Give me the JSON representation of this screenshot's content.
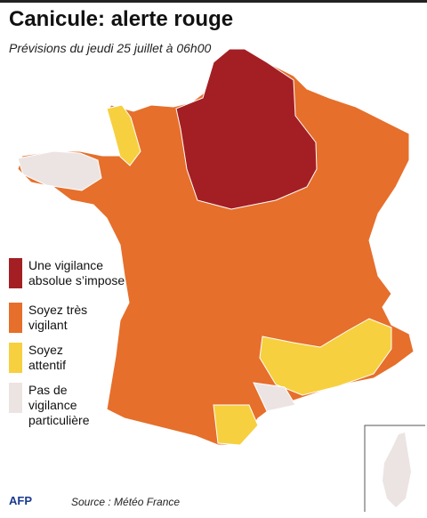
{
  "header": {
    "title": "Canicule: alerte rouge",
    "subtitle": "Prévisions du jeudi 25 juillet à 06h00"
  },
  "legend": [
    {
      "label": "Une vigilance absolue s’impose",
      "color": "#a31f24"
    },
    {
      "label": "Soyez très vigilant",
      "color": "#e66f2b"
    },
    {
      "label": "Soyez attentif",
      "color": "#f6d03f"
    },
    {
      "label": "Pas de vigilance particulière",
      "color": "#ece4e2"
    }
  ],
  "footer": {
    "credit": "AFP",
    "source": "Source : Météo France"
  }
}
